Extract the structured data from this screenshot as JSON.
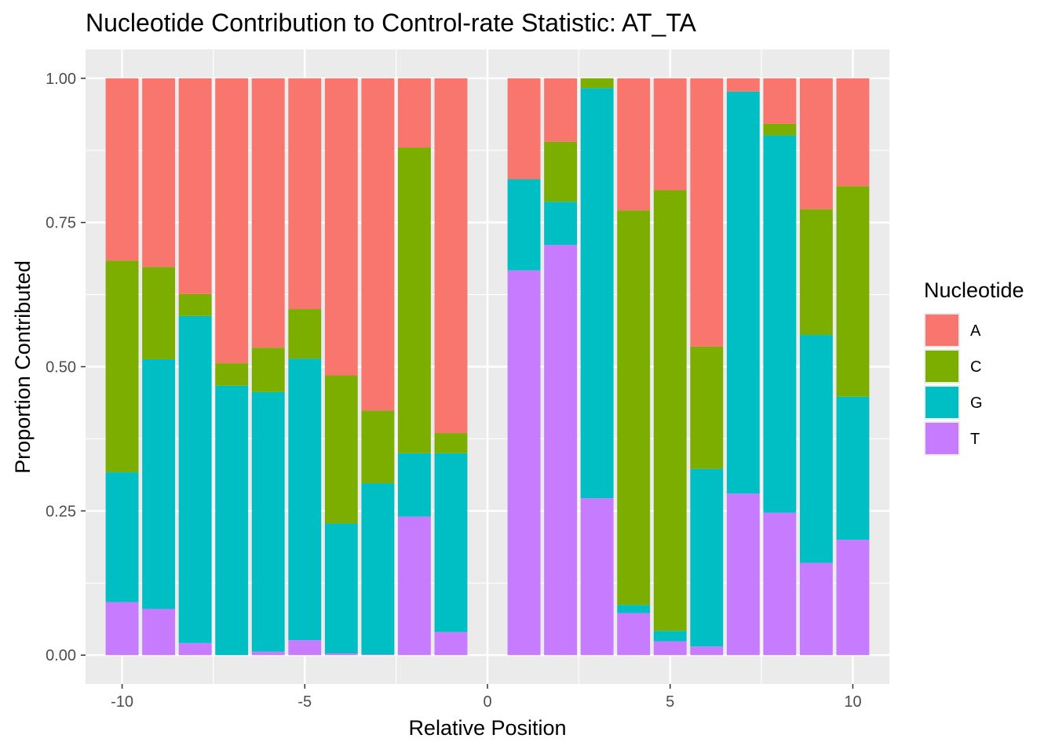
{
  "chart_data": {
    "type": "bar",
    "stacked": true,
    "title": "Nucleotide Contribution to Control-rate Statistic: AT_TA",
    "xlabel": "Relative Position",
    "ylabel": "Proportion Contributed",
    "xlim": [
      -11.0,
      11.0
    ],
    "ylim": [
      -0.05,
      1.05
    ],
    "x_ticks": [
      -10,
      -5,
      0,
      5,
      10
    ],
    "x_tick_labels": [
      "-10",
      "-5",
      "0",
      "5",
      "10"
    ],
    "y_ticks": [
      0,
      0.25,
      0.5,
      0.75,
      1.0
    ],
    "y_tick_labels": [
      "0.00",
      "0.25",
      "0.50",
      "0.75",
      "1.00"
    ],
    "grid": true,
    "legend": {
      "title": "Nucleotide",
      "placement": "right",
      "entries": [
        "A",
        "C",
        "G",
        "T"
      ]
    },
    "colors": {
      "A": "#F8766D",
      "C": "#7CAE00",
      "G": "#00BFC4",
      "T": "#C77CFF",
      "panel": "#EBEBEB",
      "grid_major": "#FFFFFF",
      "tick": "#333333"
    },
    "x": [
      -10,
      -9,
      -8,
      -7,
      -6,
      -5,
      -4,
      -3,
      -2,
      -1,
      1,
      2,
      3,
      4,
      5,
      6,
      7,
      8,
      9,
      10
    ],
    "series": [
      {
        "name": "T",
        "values": [
          0.092,
          0.08,
          0.021,
          0.0,
          0.006,
          0.026,
          0.003,
          0.001,
          0.24,
          0.04,
          0.667,
          0.711,
          0.272,
          0.073,
          0.024,
          0.015,
          0.28,
          0.247,
          0.16,
          0.2
        ]
      },
      {
        "name": "G",
        "values": [
          0.225,
          0.433,
          0.567,
          0.467,
          0.45,
          0.488,
          0.225,
          0.297,
          0.11,
          0.31,
          0.158,
          0.075,
          0.711,
          0.014,
          0.018,
          0.308,
          0.697,
          0.654,
          0.395,
          0.248
        ]
      },
      {
        "name": "C",
        "values": [
          0.367,
          0.16,
          0.038,
          0.039,
          0.077,
          0.086,
          0.257,
          0.126,
          0.53,
          0.035,
          0.0,
          0.104,
          0.017,
          0.684,
          0.764,
          0.212,
          0.0,
          0.02,
          0.218,
          0.365
        ]
      },
      {
        "name": "A",
        "values": [
          0.316,
          0.327,
          0.374,
          0.494,
          0.467,
          0.4,
          0.515,
          0.576,
          0.12,
          0.615,
          0.175,
          0.11,
          0.0,
          0.229,
          0.194,
          0.465,
          0.023,
          0.079,
          0.227,
          0.187
        ]
      }
    ]
  }
}
